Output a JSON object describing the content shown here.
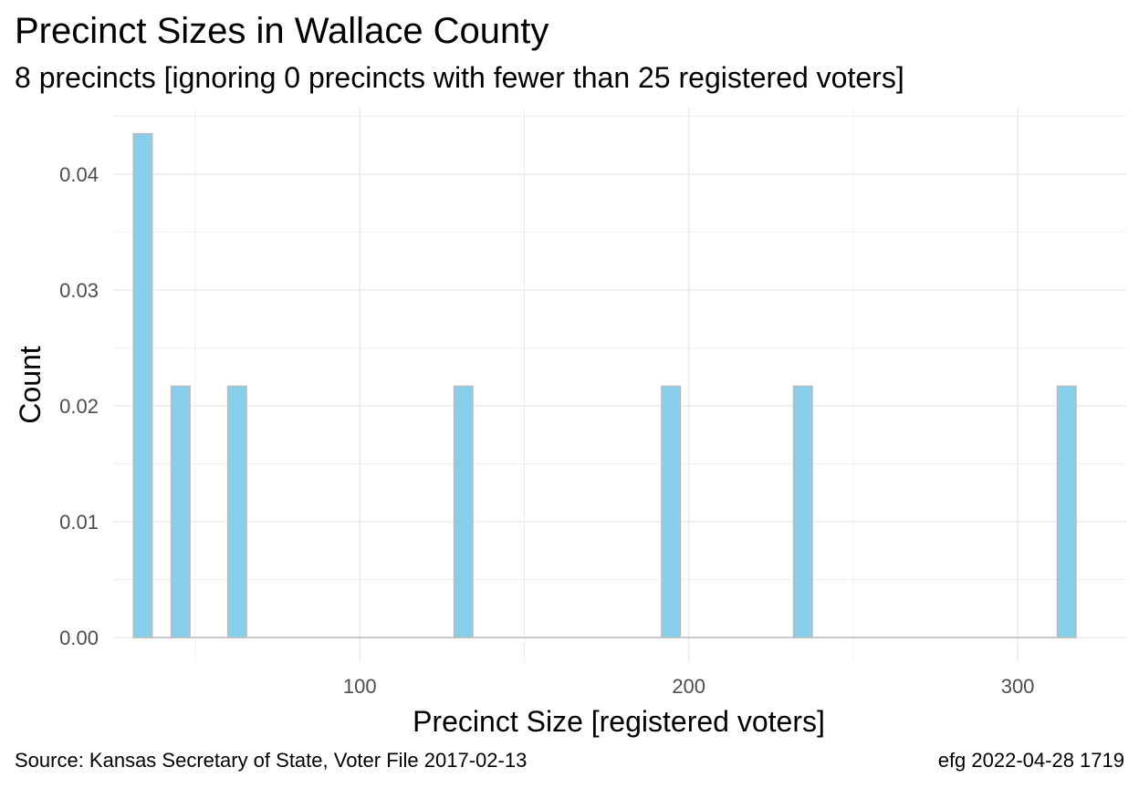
{
  "chart_data": {
    "type": "bar",
    "title": "Precinct Sizes in Wallace County",
    "subtitle": "8 precincts [ignoring 0 precincts with fewer than 25 registered voters]",
    "xlabel": "Precinct Size [registered voters]",
    "ylabel": "Count",
    "xlim": [
      25,
      333
    ],
    "ylim": [
      0,
      0.0455
    ],
    "xticks": [
      100,
      200,
      300
    ],
    "xtick_labels": [
      "100",
      "200",
      "300"
    ],
    "yticks": [
      0,
      0.01,
      0.02,
      0.03,
      0.04
    ],
    "ytick_labels": [
      "0.00",
      "0.01",
      "0.02",
      "0.03",
      "0.04"
    ],
    "bin_width": 5.7,
    "bins": [
      {
        "x": 34,
        "value": 0.0435
      },
      {
        "x": 45.5,
        "value": 0.0217
      },
      {
        "x": 62.7,
        "value": 0.0217
      },
      {
        "x": 131.5,
        "value": 0.0217
      },
      {
        "x": 194.6,
        "value": 0.0217
      },
      {
        "x": 234.7,
        "value": 0.0217
      },
      {
        "x": 314.9,
        "value": 0.0217
      }
    ],
    "bar_fill": "#87CEEB",
    "bar_stroke": "#bcbcbc",
    "grid": true,
    "grid_color": "#ebebeb"
  },
  "caption": {
    "source": "Source:  Kansas Secretary of State, Voter File  2017-02-13",
    "stamp": "efg 2022-04-28 1719"
  }
}
